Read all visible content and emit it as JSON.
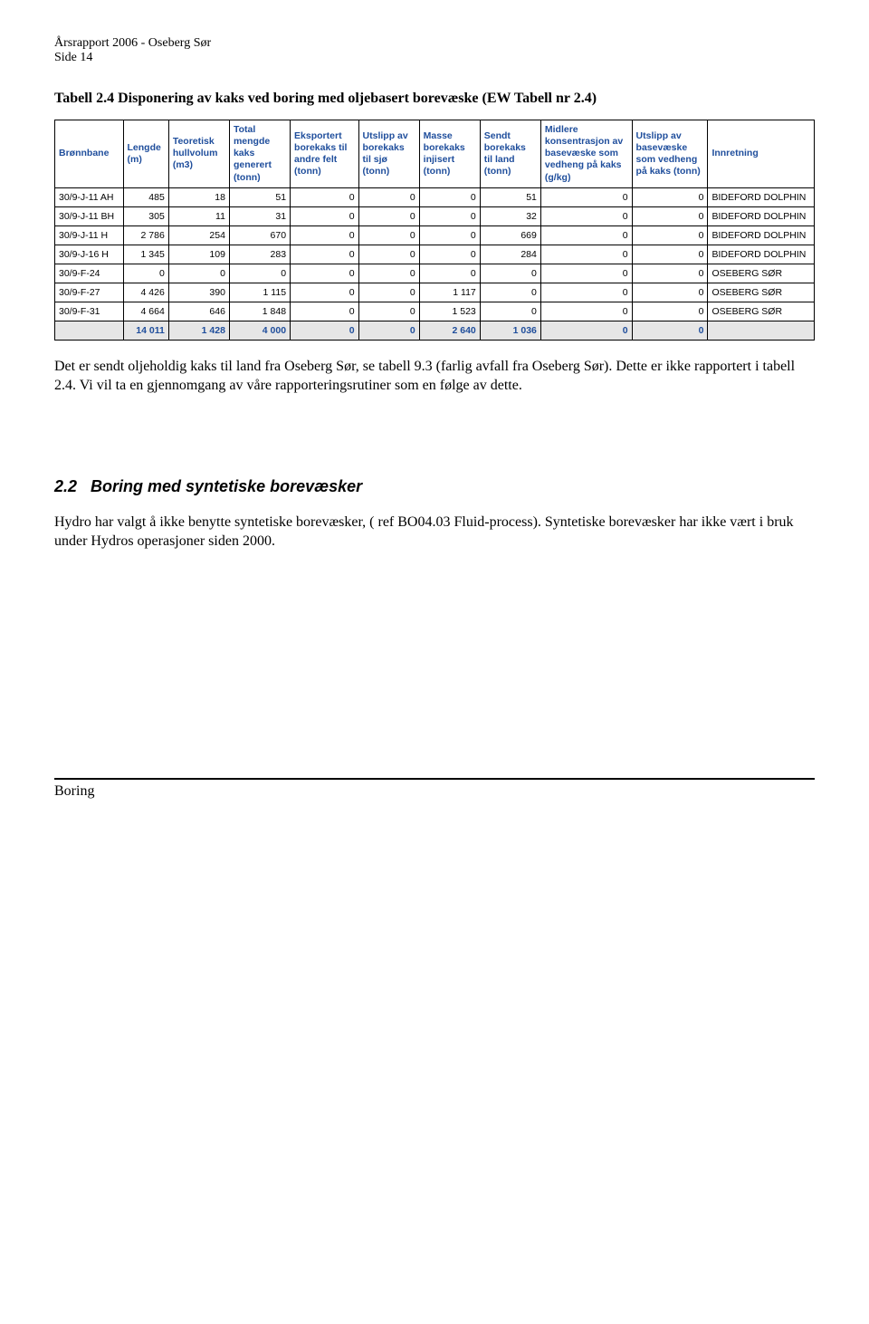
{
  "header": {
    "line1": "Årsrapport 2006 - Oseberg Sør",
    "line2": "Side 14"
  },
  "table": {
    "caption": "Tabell 2.4 Disponering av kaks ved boring med oljebasert borevæske (EW Tabell nr 2.4)",
    "columns": [
      "Brønnbane",
      "Lengde (m)",
      "Teoretisk hullvolum (m3)",
      "Total mengde kaks generert (tonn)",
      "Eksportert borekaks til andre felt (tonn)",
      "Utslipp av borekaks til sjø (tonn)",
      "Masse borekaks injisert (tonn)",
      "Sendt borekaks til land (tonn)",
      "Midlere konsentrasjon av basevæske som vedheng på kaks (g/kg)",
      "Utslipp av basevæske som vedheng på kaks (tonn)",
      "Innretning"
    ],
    "col_widths": [
      "9%",
      "6%",
      "8%",
      "8%",
      "9%",
      "8%",
      "8%",
      "8%",
      "12%",
      "10%",
      "14%"
    ],
    "header_color": "#1f4e9c",
    "border_color": "#000000",
    "font_size_pt": 8,
    "rows": [
      {
        "label": "30/9-J-11 AH",
        "vals": [
          "485",
          "18",
          "51",
          "0",
          "0",
          "0",
          "51",
          "0",
          "0"
        ],
        "innr": "BIDEFORD DOLPHIN"
      },
      {
        "label": "30/9-J-11 BH",
        "vals": [
          "305",
          "11",
          "31",
          "0",
          "0",
          "0",
          "32",
          "0",
          "0"
        ],
        "innr": "BIDEFORD DOLPHIN"
      },
      {
        "label": "30/9-J-11 H",
        "vals": [
          "2 786",
          "254",
          "670",
          "0",
          "0",
          "0",
          "669",
          "0",
          "0"
        ],
        "innr": "BIDEFORD DOLPHIN"
      },
      {
        "label": "30/9-J-16 H",
        "vals": [
          "1 345",
          "109",
          "283",
          "0",
          "0",
          "0",
          "284",
          "0",
          "0"
        ],
        "innr": "BIDEFORD DOLPHIN"
      },
      {
        "label": "30/9-F-24",
        "vals": [
          "0",
          "0",
          "0",
          "0",
          "0",
          "0",
          "0",
          "0",
          "0"
        ],
        "innr": "OSEBERG SØR"
      },
      {
        "label": "30/9-F-27",
        "vals": [
          "4 426",
          "390",
          "1 115",
          "0",
          "0",
          "1 117",
          "0",
          "0",
          "0"
        ],
        "innr": "OSEBERG SØR"
      },
      {
        "label": "30/9-F-31",
        "vals": [
          "4 664",
          "646",
          "1 848",
          "0",
          "0",
          "1 523",
          "0",
          "0",
          "0"
        ],
        "innr": "OSEBERG SØR"
      }
    ],
    "totals": {
      "label": "",
      "vals": [
        "14 011",
        "1 428",
        "4 000",
        "0",
        "0",
        "2 640",
        "1 036",
        "0",
        "0"
      ],
      "innr": ""
    },
    "totals_bg": "#e6e6e6"
  },
  "paragraph1": "Det er sendt oljeholdig kaks til land fra Oseberg Sør, se tabell 9.3 (farlig avfall fra Oseberg Sør). Dette er ikke rapportert i tabell 2.4. Vi vil ta en gjennomgang av våre rapporteringsrutiner som en følge av dette.",
  "section": {
    "number": "2.2",
    "title": "Boring med syntetiske borevæsker"
  },
  "paragraph2": "Hydro har valgt å ikke benytte syntetiske borevæsker, ( ref BO04.03 Fluid-process). Syntetiske borevæsker har ikke vært i bruk under Hydros operasjoner siden 2000.",
  "footer": "Boring"
}
